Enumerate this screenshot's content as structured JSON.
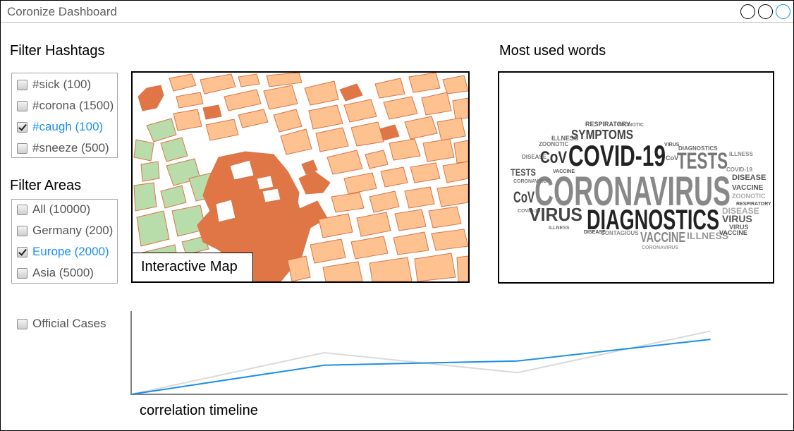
{
  "window": {
    "title": "Coronize Dashboard"
  },
  "filters": {
    "hashtags": {
      "title": "Filter Hashtags",
      "items": [
        {
          "label": "#sick (100)",
          "checked": false
        },
        {
          "label": "#corona (1500)",
          "checked": false
        },
        {
          "label": "#caugh (100)",
          "checked": true
        },
        {
          "label": "#sneeze (500)",
          "checked": false
        }
      ]
    },
    "areas": {
      "title": "Filter Areas",
      "items": [
        {
          "label": "All (10000)",
          "checked": false
        },
        {
          "label": "Germany (200)",
          "checked": false
        },
        {
          "label": "Europe (2000)",
          "checked": true
        },
        {
          "label": "Asia (5000)",
          "checked": false
        }
      ]
    },
    "official_cases": {
      "label": "Official Cases",
      "checked": false
    }
  },
  "map": {
    "label": "Interactive Map"
  },
  "word_cloud": {
    "title": "Most used words",
    "words": [
      "RESPIRATORY",
      "ZOONOTIC",
      "SYMPTOMS",
      "ILLNESS",
      "VIRUS",
      "DIAGNOSTICS",
      "DISEASE",
      "CoV",
      "COVID-19",
      "TESTS",
      "VACCINE",
      "CORONAVIRUS",
      "CONTAGIOUS"
    ]
  },
  "chart": {
    "xlabel": "correlation timeline"
  },
  "colors": {
    "accent": "#1a8fe8",
    "map_fill": "#fdc28f",
    "map_dark": "#e07646",
    "map_park": "#b8dcaa",
    "gray_series": "#d9d9d9"
  },
  "chart_data": {
    "type": "line",
    "xlabel": "correlation timeline",
    "ylabel": "",
    "x": [
      0,
      1,
      2,
      3
    ],
    "xlim": [
      0,
      3.4
    ],
    "ylim": [
      0,
      1
    ],
    "series": [
      {
        "values": [
          0,
          0.35,
          0.4,
          0.66
        ],
        "color": "#1a8fe8"
      },
      {
        "values": [
          0,
          0.5,
          0.26,
          0.76
        ],
        "color": "#d9d9d9"
      }
    ]
  }
}
